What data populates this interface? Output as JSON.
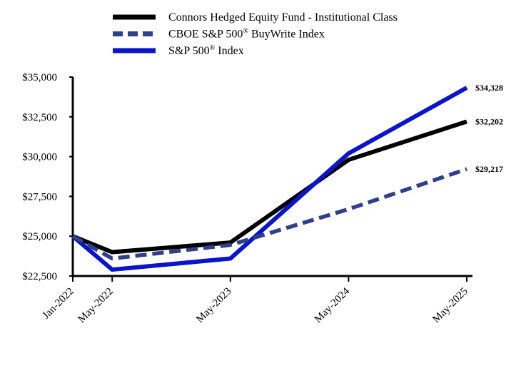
{
  "chart_data": {
    "type": "line",
    "title": "",
    "xlabel": "",
    "ylabel": "",
    "x": [
      "Jan-2022",
      "May-2022",
      "May-2023",
      "May-2024",
      "May-2025"
    ],
    "x_positions_months": [
      0,
      4,
      16,
      28,
      40
    ],
    "ylim": [
      22500,
      35000
    ],
    "yticks": [
      22500,
      25000,
      27500,
      30000,
      32500,
      35000
    ],
    "ytick_labels": [
      "$22,500",
      "$25,000",
      "$27,500",
      "$30,000",
      "$32,500",
      "$35,000"
    ],
    "grid": false,
    "legend_position": "top-left",
    "series": [
      {
        "name": "Connors Hedged Equity Fund - Institutional Class",
        "name_main": "Connors Hedged Equity Fund - Institutional Class",
        "name_sup": "",
        "name_after": "",
        "color": "#000000",
        "style": "solid",
        "values": [
          25000,
          24000,
          24600,
          29800,
          32202
        ],
        "end_label": "$32,202"
      },
      {
        "name": "CBOE S&P 500® BuyWrite Index",
        "name_main": "CBOE S&P 500",
        "name_sup": "®",
        "name_after": " BuyWrite Index",
        "color": "#2e3f8c",
        "style": "dashed",
        "values": [
          25000,
          23600,
          24450,
          26700,
          29217
        ],
        "end_label": "$29,217"
      },
      {
        "name": "S&P 500® Index",
        "name_main": "S&P 500",
        "name_sup": "®",
        "name_after": " Index",
        "color": "#0a14c8",
        "style": "solid",
        "values": [
          25000,
          22900,
          23600,
          30200,
          34328
        ],
        "end_label": "$34,328"
      }
    ]
  }
}
